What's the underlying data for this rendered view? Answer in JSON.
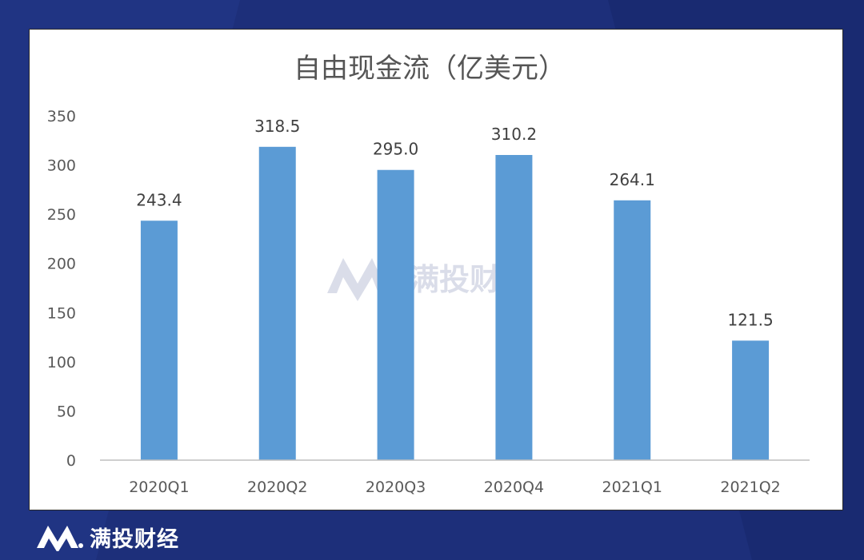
{
  "brand": {
    "name": "满投财经",
    "watermark": "满投财经"
  },
  "colors": {
    "bar": "#5b9bd5",
    "background": "#1d2f7a"
  },
  "chart_data": {
    "type": "bar",
    "title": "自由现金流（亿美元）",
    "categories": [
      "2020Q1",
      "2020Q2",
      "2020Q3",
      "2020Q4",
      "2021Q1",
      "2021Q2"
    ],
    "values": [
      243.4,
      318.5,
      295.0,
      310.2,
      264.1,
      121.5
    ],
    "value_labels": [
      "243.4",
      "318.5",
      "295.0",
      "310.2",
      "264.1",
      "121.5"
    ],
    "yticks": [
      "0",
      "50",
      "100",
      "150",
      "200",
      "250",
      "300",
      "350"
    ],
    "ylim": [
      0,
      350
    ],
    "grid": false,
    "legend": "none"
  }
}
